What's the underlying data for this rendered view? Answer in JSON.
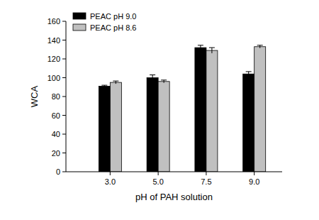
{
  "chart_data": {
    "type": "bar",
    "categories": [
      "3.0",
      "5.0",
      "7.5",
      "9.0"
    ],
    "x_label": "pH of PAH solution",
    "y_label": "WCA",
    "series": [
      {
        "name": "PEAC pH 9.0",
        "color": "#000000",
        "values": [
          91,
          100,
          132,
          104
        ],
        "errors": [
          1,
          3,
          2.5,
          2.5
        ]
      },
      {
        "name": "PEAC pH 8.6",
        "color": "#c0c0c0",
        "values": [
          95,
          96,
          129,
          133
        ],
        "errors": [
          1.5,
          1.5,
          3,
          1.5
        ]
      }
    ],
    "ylim": [
      0,
      160
    ],
    "yticks": [
      0,
      20,
      40,
      60,
      80,
      100,
      120,
      140,
      160
    ],
    "grid": false,
    "legend": "upper-left"
  }
}
